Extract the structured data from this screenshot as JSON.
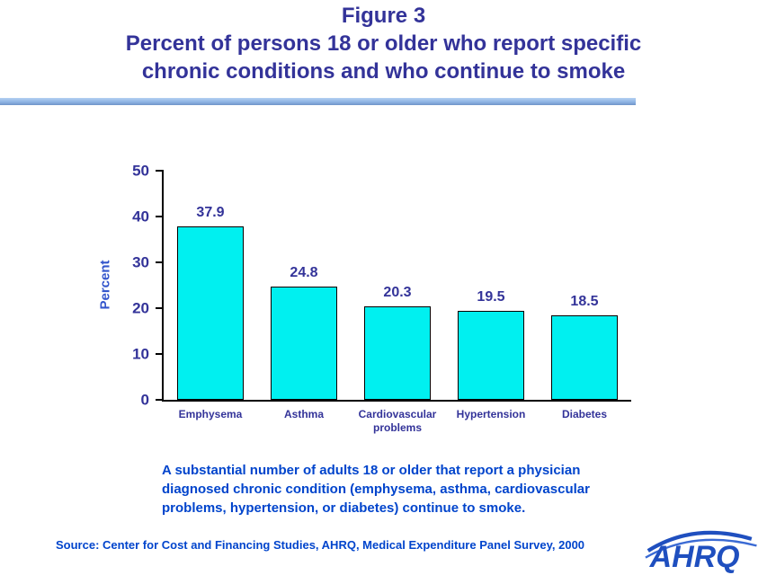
{
  "title": {
    "lines": [
      "Figure 3",
      "Percent of persons 18 or older who report specific",
      "chronic conditions and who continue to smoke"
    ]
  },
  "chart_data": {
    "type": "bar",
    "title": "Figure 3: Percent of persons 18 or older who report specific chronic conditions and who continue to smoke",
    "categories": [
      "Emphysema",
      "Asthma",
      "Cardiovascular problems",
      "Hypertension",
      "Diabetes"
    ],
    "values": [
      37.9,
      24.8,
      20.3,
      19.5,
      18.5
    ],
    "xlabel": "",
    "ylabel": "Percent",
    "ylim": [
      0,
      50
    ],
    "yticks": [
      0,
      10,
      20,
      30,
      40,
      50
    ],
    "grid": false,
    "legend": "none",
    "bar_color": "#00F0F0",
    "bar_border_color": "#000000",
    "value_label_color": "#333399"
  },
  "caption": {
    "lines": [
      "A substantial number of adults 18 or older that report a physician",
      "diagnosed chronic condition (emphysema, asthma, cardiovascular",
      "problems, hypertension, or diabetes) continue to smoke."
    ]
  },
  "source": "Source: Center for Cost and Financing Studies, AHRQ, Medical Expenditure Panel Survey, 2000",
  "logo": {
    "text": "AHRQ"
  },
  "colors": {
    "title_text": "#333399",
    "axis_text": "#333399",
    "body_text": "#0044CC",
    "divider": "#8FB4E4",
    "logo_blue": "#1F4FBF"
  }
}
